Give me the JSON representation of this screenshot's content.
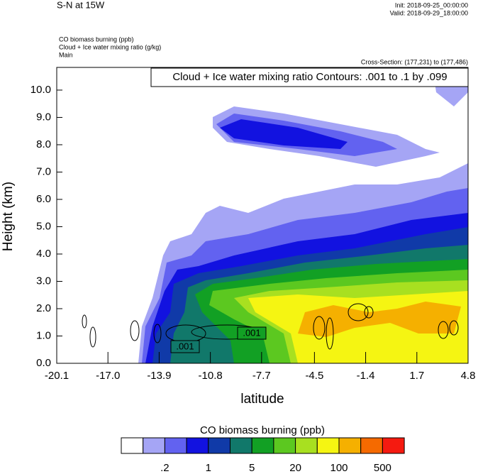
{
  "header": {
    "title": "S-N at 15W",
    "init": "Init: 2018-09-25_00:00:00",
    "valid": "Valid: 2018-09-29_18:00:00",
    "fields": [
      "CO biomass burning   (ppb)",
      "Cloud + Ice water mixing ratio   (g/kg)",
      "Main"
    ],
    "cross_section": "Cross-Section: (177,231) to (177,486)"
  },
  "chart_data": {
    "type": "contour",
    "contour_info": "Cloud + Ice water mixing ratio Contours: .001 to .1 by .099",
    "contour_labels": [
      ".001",
      ".001"
    ],
    "x_label": "latitude",
    "y_label": "Height (km)",
    "xlim": [
      -20.1,
      4.8
    ],
    "xticks": [
      -20.1,
      {
        "value": -17,
        "label": "-17.0"
      },
      -13.9,
      -10.8,
      -7.7,
      -4.5,
      -1.4,
      1.7,
      4.8
    ],
    "ylim": [
      0,
      10.83
    ],
    "yticks": [
      {
        "value": 0,
        "label": "0.0"
      },
      {
        "value": 1,
        "label": "1.0"
      },
      {
        "value": 2,
        "label": "2.0"
      },
      {
        "value": 3,
        "label": "3.0"
      },
      {
        "value": 4,
        "label": "4.0"
      },
      {
        "value": 5,
        "label": "5.0"
      },
      {
        "value": 6,
        "label": "6.0"
      },
      {
        "value": 7,
        "label": "7.0"
      },
      {
        "value": 8,
        "label": "8.0"
      },
      {
        "value": 9,
        "label": "9.0"
      },
      {
        "value": 10,
        "label": "10.0"
      }
    ],
    "colorbar": {
      "title": "CO biomass burning  (ppb)",
      "colors": [
        "#ffffff",
        "#a5a5f5",
        "#6262f0",
        "#1212e0",
        "#103aa8",
        "#11786a",
        "#12a024",
        "#5cc820",
        "#a8e020",
        "#f5f512",
        "#f5b000",
        "#f56a00",
        "#f51a10"
      ],
      "labels": [
        {
          "value": 0.2,
          "label": ".2"
        },
        1,
        5,
        20,
        100,
        500
      ]
    }
  }
}
